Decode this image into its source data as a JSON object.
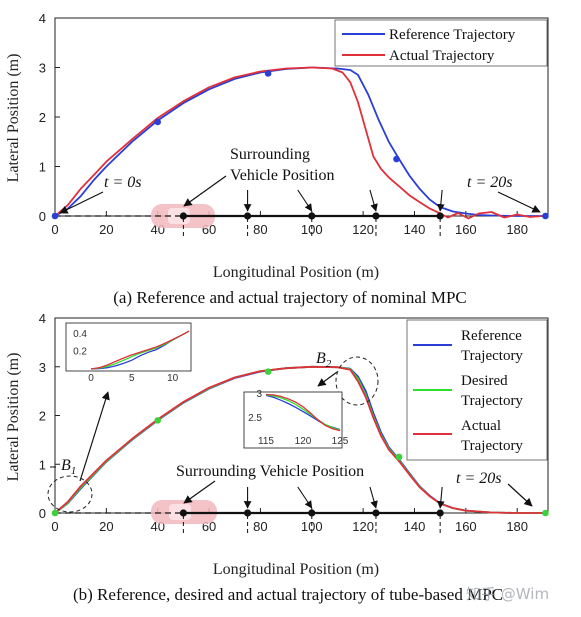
{
  "chart_data": [
    {
      "type": "line",
      "caption": "(a) Reference and actual trajectory of nominal MPC",
      "xlabel": "Longitudinal Position (m)",
      "ylabel": "Lateral Position (m)",
      "xlim": [
        0,
        192
      ],
      "ylim": [
        0,
        4
      ],
      "xticks": [
        0,
        20,
        40,
        60,
        80,
        100,
        120,
        140,
        160,
        180
      ],
      "yticks": [
        0,
        1,
        2,
        3,
        4
      ],
      "legend_position": "top-right",
      "series": [
        {
          "name": "Reference Trajectory",
          "color": "#2a3fd6",
          "x": [
            0,
            5,
            10,
            15,
            20,
            30,
            40,
            50,
            60,
            70,
            80,
            90,
            100,
            110,
            115,
            118,
            122,
            126,
            130,
            134,
            138,
            142,
            146,
            150,
            155,
            160,
            165,
            170,
            180,
            190,
            192
          ],
          "y": [
            0,
            0.15,
            0.4,
            0.72,
            1.0,
            1.5,
            1.93,
            2.28,
            2.56,
            2.77,
            2.9,
            2.97,
            3.0,
            2.98,
            2.95,
            2.85,
            2.45,
            1.95,
            1.5,
            1.15,
            0.82,
            0.55,
            0.33,
            0.18,
            0.09,
            0.05,
            0.02,
            0.01,
            0.0,
            0.0,
            0.0
          ]
        },
        {
          "name": "Actual Trajectory",
          "color": "#e0303a",
          "x": [
            0,
            5,
            10,
            15,
            20,
            30,
            40,
            50,
            60,
            70,
            80,
            90,
            100,
            108,
            112,
            115,
            118,
            121,
            124,
            127,
            130,
            134,
            138,
            142,
            146,
            150,
            153,
            157,
            161,
            165,
            170,
            175,
            180,
            185,
            190
          ],
          "y": [
            0,
            0.22,
            0.55,
            0.82,
            1.1,
            1.55,
            1.98,
            2.32,
            2.6,
            2.8,
            2.92,
            2.98,
            3.0,
            2.98,
            2.9,
            2.7,
            2.3,
            1.75,
            1.2,
            0.95,
            0.78,
            0.6,
            0.42,
            0.28,
            0.15,
            0.05,
            -0.03,
            0.06,
            -0.05,
            0.05,
            0.08,
            -0.03,
            0.03,
            -0.02,
            0.0
          ]
        }
      ],
      "waypoints": {
        "x": [
          0,
          40,
          83,
          133,
          191
        ],
        "y": [
          0,
          1.9,
          2.88,
          1.15,
          0.0
        ]
      },
      "surrounding_vehicle_positions": [
        50,
        75,
        100,
        125,
        150
      ],
      "vehicle_path_dashed": [
        0,
        50
      ],
      "annotations": {
        "t_start": "t = 0s",
        "surrounding_line1": "Surrounding",
        "surrounding_line2": "Vehicle Position",
        "t_end": "t = 20s"
      }
    },
    {
      "type": "line",
      "caption": "(b) Reference, desired and actual trajectory of tube-based MPC",
      "xlabel": "Longitudinal Position (m)",
      "ylabel": "Lateral Position (m)",
      "xlim": [
        0,
        192
      ],
      "ylim": [
        0,
        4
      ],
      "xticks": [
        0,
        20,
        40,
        60,
        80,
        100,
        120,
        140,
        160,
        180
      ],
      "yticks": [
        0,
        1,
        2,
        3,
        4
      ],
      "legend_position": "right",
      "series": [
        {
          "name_line1": "Reference",
          "name_line2": "Trajectory",
          "color": "#2a3fd6",
          "x": [
            0,
            5,
            10,
            20,
            30,
            40,
            50,
            60,
            70,
            80,
            90,
            100,
            110,
            115,
            118,
            121,
            124,
            127,
            130,
            134,
            138,
            142,
            146,
            150,
            155,
            160,
            170,
            180,
            190
          ],
          "y": [
            0,
            0.2,
            0.5,
            1.05,
            1.5,
            1.9,
            2.26,
            2.55,
            2.77,
            2.9,
            2.97,
            3.0,
            2.99,
            2.96,
            2.8,
            2.5,
            2.05,
            1.65,
            1.35,
            1.1,
            0.82,
            0.55,
            0.35,
            0.2,
            0.1,
            0.05,
            0.01,
            0.0,
            0.0
          ]
        },
        {
          "name_line1": "Desired",
          "name_line2": "Trajectory",
          "color": "#2ee02e",
          "x": [
            0,
            5,
            10,
            20,
            30,
            40,
            50,
            60,
            70,
            80,
            90,
            100,
            110,
            115,
            118,
            121,
            124,
            127,
            130,
            134,
            138,
            142,
            146,
            150,
            155,
            160,
            170,
            180,
            190
          ],
          "y": [
            0,
            0.21,
            0.52,
            1.06,
            1.51,
            1.91,
            2.27,
            2.56,
            2.78,
            2.91,
            2.97,
            3.0,
            2.99,
            2.95,
            2.75,
            2.42,
            1.98,
            1.6,
            1.32,
            1.08,
            0.8,
            0.54,
            0.34,
            0.19,
            0.1,
            0.05,
            0.01,
            0.0,
            0.0
          ]
        },
        {
          "name_line1": "Actual",
          "name_line2": "Trajectory",
          "color": "#e0303a",
          "x": [
            0,
            5,
            10,
            20,
            30,
            40,
            50,
            60,
            70,
            80,
            90,
            100,
            110,
            115,
            118,
            121,
            124,
            127,
            130,
            134,
            138,
            142,
            146,
            150,
            155,
            160,
            170,
            180,
            190
          ],
          "y": [
            0,
            0.23,
            0.55,
            1.08,
            1.52,
            1.92,
            2.28,
            2.57,
            2.78,
            2.91,
            2.97,
            3.0,
            2.99,
            2.94,
            2.7,
            2.38,
            1.95,
            1.58,
            1.3,
            1.06,
            0.79,
            0.53,
            0.34,
            0.19,
            0.1,
            0.05,
            0.01,
            0.0,
            0.0
          ]
        }
      ],
      "waypoints": {
        "x": [
          0,
          40,
          83,
          134,
          191
        ],
        "y": [
          0,
          1.9,
          2.9,
          1.15,
          0.0
        ]
      },
      "surrounding_vehicle_positions": [
        50,
        75,
        100,
        125,
        150
      ],
      "vehicle_path_dashed": [
        0,
        50
      ],
      "annotations": {
        "b1": "B",
        "b1_sub": "1",
        "b2": "B",
        "b2_sub": "2",
        "surrounding": "Surrounding Vehicle Position",
        "t_end": "t = 20s"
      },
      "insets": [
        {
          "id": "B1",
          "xlim": [
            0,
            12
          ],
          "ylim": [
            0,
            0.5
          ],
          "xticks": [
            0,
            5,
            10
          ],
          "yticks": [
            0.2,
            0.4
          ],
          "series": [
            {
              "color": "#2a3fd6",
              "x": [
                0,
                1,
                2,
                3,
                4,
                5,
                6,
                7,
                8,
                9,
                10,
                11,
                12
              ],
              "y": [
                0,
                0.005,
                0.015,
                0.035,
                0.065,
                0.1,
                0.15,
                0.19,
                0.22,
                0.27,
                0.33,
                0.38,
                0.43
              ]
            },
            {
              "color": "#2ee02e",
              "x": [
                0,
                1,
                2,
                3,
                4,
                5,
                6,
                7,
                8,
                9,
                10,
                11,
                12
              ],
              "y": [
                0,
                0.01,
                0.03,
                0.06,
                0.1,
                0.14,
                0.18,
                0.21,
                0.24,
                0.28,
                0.33,
                0.38,
                0.43
              ]
            },
            {
              "color": "#e0303a",
              "x": [
                0,
                1,
                2,
                3,
                4,
                5,
                6,
                7,
                8,
                9,
                10,
                11,
                12
              ],
              "y": [
                0,
                0.015,
                0.045,
                0.085,
                0.125,
                0.16,
                0.19,
                0.22,
                0.25,
                0.29,
                0.335,
                0.38,
                0.43
              ]
            }
          ]
        },
        {
          "id": "B2",
          "xlim": [
            115,
            125
          ],
          "ylim": [
            2.2,
            3.0
          ],
          "xticks": [
            115,
            120,
            125
          ],
          "yticks": [
            2.5,
            3
          ],
          "series": [
            {
              "color": "#2a3fd6",
              "x": [
                115,
                116,
                117,
                118,
                119,
                120,
                121,
                122,
                123,
                124,
                125
              ],
              "y": [
                2.97,
                2.93,
                2.87,
                2.8,
                2.72,
                2.63,
                2.54,
                2.44,
                2.35,
                2.3,
                2.25
              ]
            },
            {
              "color": "#2ee02e",
              "x": [
                115,
                116,
                117,
                118,
                119,
                120,
                121,
                122,
                123,
                124,
                125
              ],
              "y": [
                2.98,
                2.96,
                2.92,
                2.86,
                2.78,
                2.68,
                2.57,
                2.46,
                2.36,
                2.29,
                2.24
              ]
            },
            {
              "color": "#e0303a",
              "x": [
                115,
                116,
                117,
                118,
                119,
                120,
                121,
                122,
                123,
                124,
                125
              ],
              "y": [
                2.99,
                2.98,
                2.95,
                2.9,
                2.83,
                2.73,
                2.6,
                2.46,
                2.34,
                2.27,
                2.23
              ]
            }
          ]
        }
      ]
    }
  ],
  "watermark": "知乎 @Wim"
}
